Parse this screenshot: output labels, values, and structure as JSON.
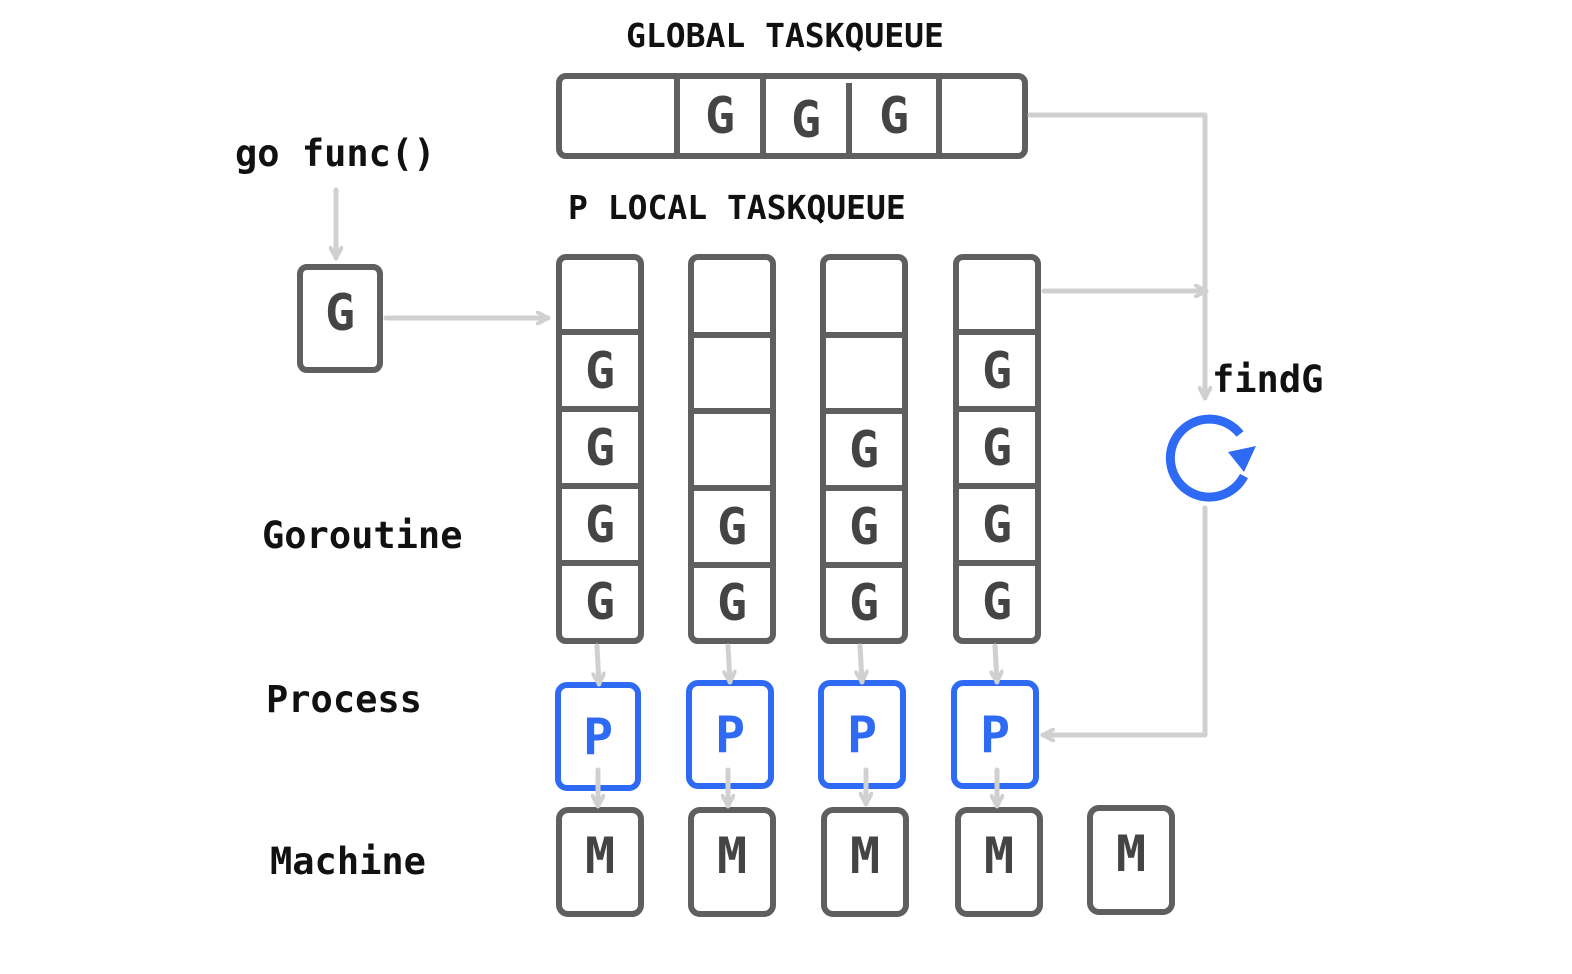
{
  "title_global": "GLOBAL TASKQUEUE",
  "title_local": "P LOCAL TASKQUEUE",
  "go_func_label": "go func()",
  "new_g_label": "G",
  "findg_label": "findG",
  "row_labels": {
    "goroutine": "Goroutine",
    "process": "Process",
    "machine": "Machine"
  },
  "global_queue": [
    "",
    "G",
    "G",
    "G",
    ""
  ],
  "local_queues": [
    [
      "",
      "G",
      "G",
      "G",
      "G"
    ],
    [
      "",
      "",
      "",
      "G",
      "G"
    ],
    [
      "",
      "",
      "G",
      "G",
      "G"
    ],
    [
      "",
      "G",
      "G",
      "G",
      "G"
    ]
  ],
  "processors": [
    "P",
    "P",
    "P",
    "P"
  ],
  "machines": [
    "M",
    "M",
    "M",
    "M",
    "M"
  ],
  "colors": {
    "box_border": "#5f5f5f",
    "processor": "#2f6af5",
    "arrow": "#d0d0d0",
    "text": "#111111"
  },
  "icons": {
    "findg": "refresh-icon"
  }
}
